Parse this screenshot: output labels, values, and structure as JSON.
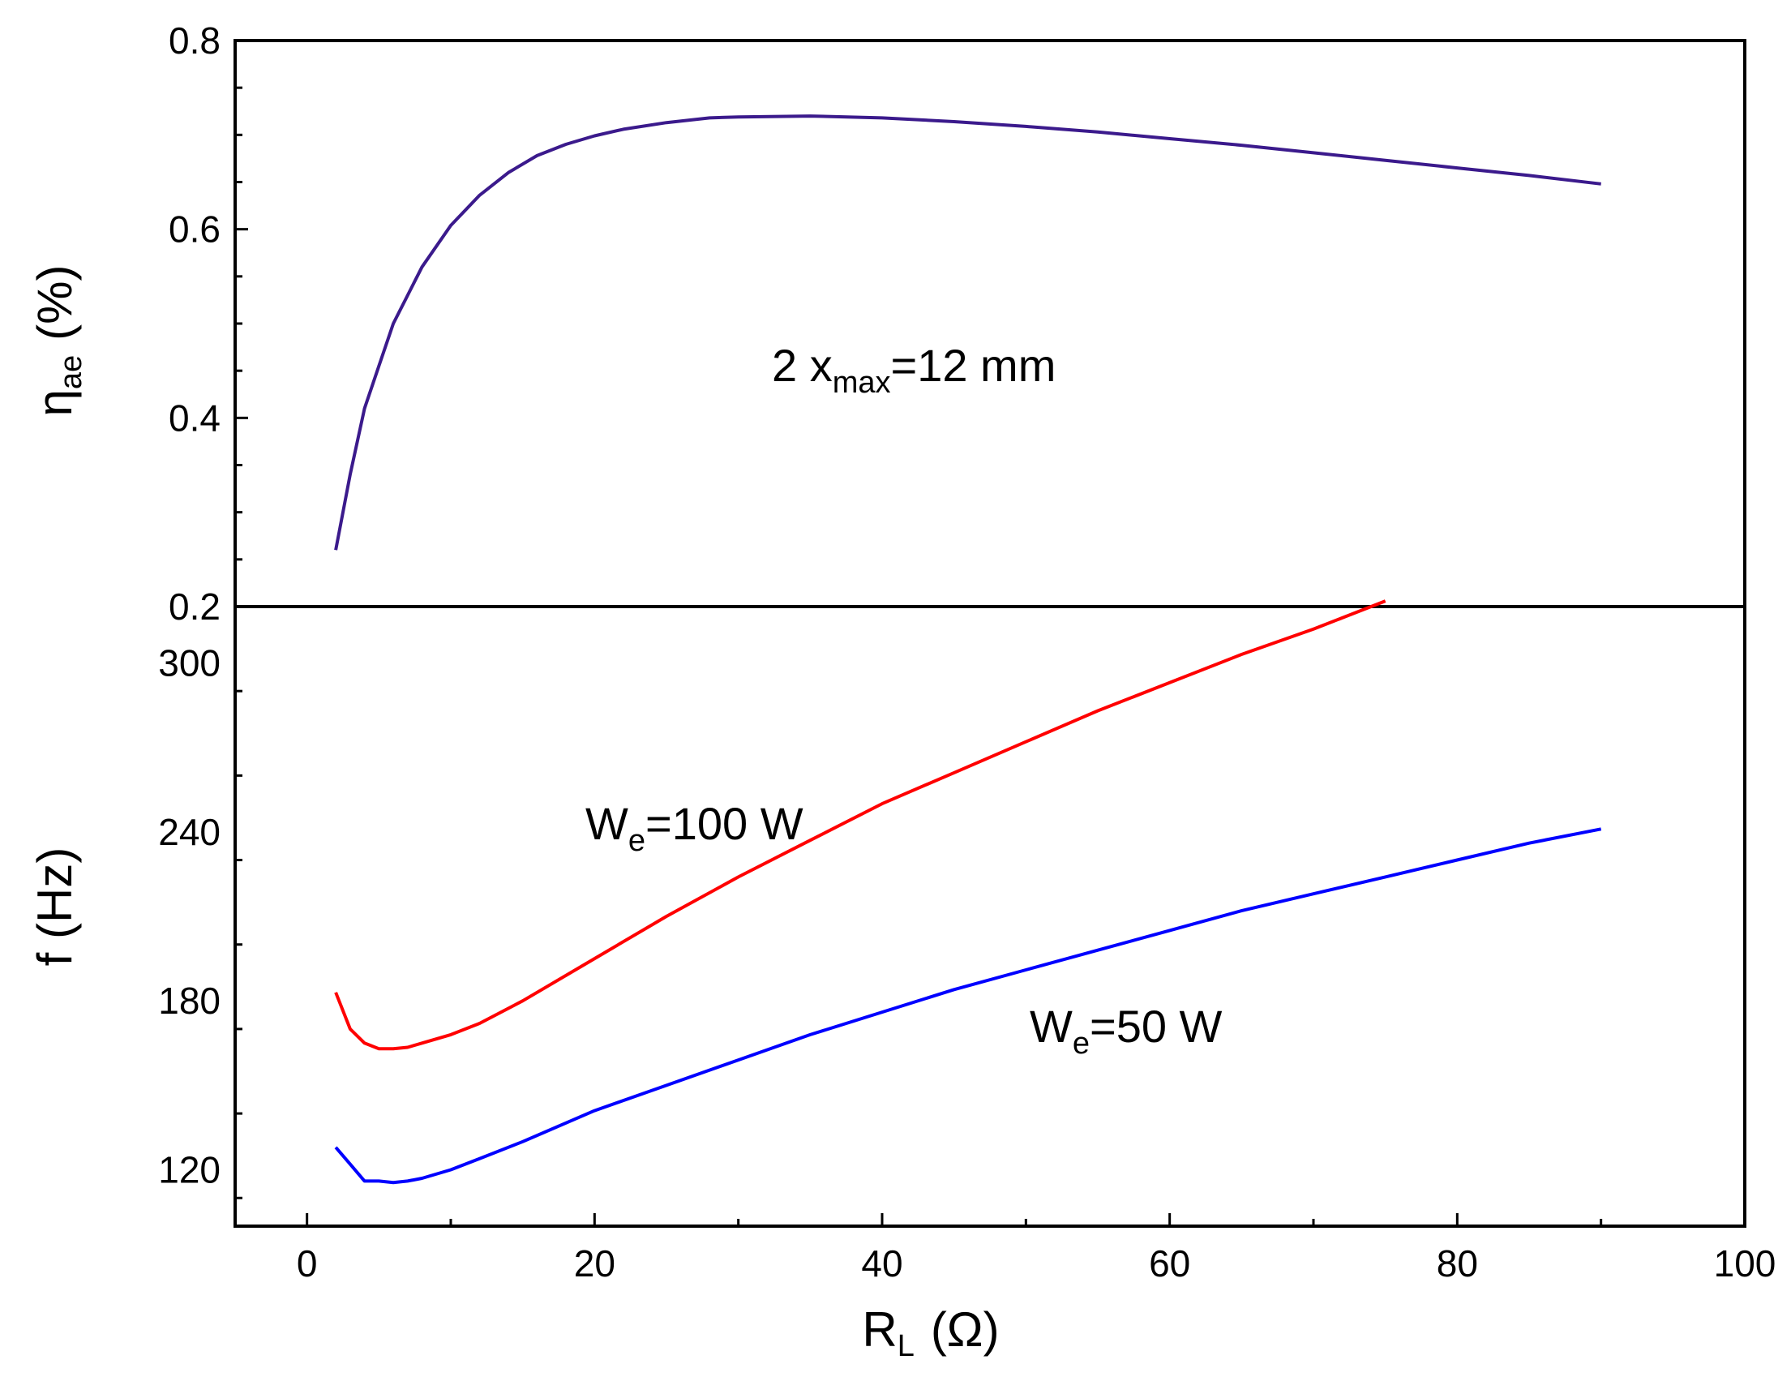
{
  "chart_data": [
    {
      "type": "line",
      "panel": "top",
      "ylabel_main": "η",
      "ylabel_sub": "ae",
      "ylabel_unit": "(%)",
      "ylim": [
        0.2,
        0.8
      ],
      "yticks": [
        "0.2",
        "0.4",
        "0.6",
        "0.8"
      ],
      "annotation": {
        "prefix": "2 x",
        "sub": "max",
        "suffix": "=12 mm"
      },
      "series": [
        {
          "name": "eta_ae",
          "color": "#3b1a8c",
          "x": [
            2,
            3,
            4,
            5,
            6,
            7,
            8,
            10,
            12,
            14,
            16,
            18,
            20,
            22,
            25,
            28,
            30,
            35,
            40,
            45,
            50,
            55,
            60,
            65,
            70,
            75,
            80,
            85,
            90
          ],
          "y": [
            0.26,
            0.34,
            0.41,
            0.455,
            0.5,
            0.53,
            0.56,
            0.604,
            0.636,
            0.66,
            0.678,
            0.69,
            0.699,
            0.706,
            0.713,
            0.718,
            0.719,
            0.72,
            0.718,
            0.714,
            0.709,
            0.703,
            0.696,
            0.689,
            0.681,
            0.673,
            0.665,
            0.657,
            0.648
          ]
        }
      ]
    },
    {
      "type": "line",
      "panel": "bottom",
      "ylabel": "f (Hz)",
      "ylim": [
        100,
        320
      ],
      "yticks": [
        "120",
        "180",
        "240",
        "300"
      ],
      "xlim": [
        -5,
        100
      ],
      "xticks": [
        "0",
        "20",
        "40",
        "60",
        "80",
        "100"
      ],
      "xlabel_main": "R",
      "xlabel_sub": "L",
      "xlabel_unit": "(Ω)",
      "series": [
        {
          "name": "We=100 W",
          "label_main": "W",
          "label_sub": "e",
          "label_suffix": "=100 W",
          "color": "#ff0000",
          "x": [
            2,
            3,
            4,
            5,
            6,
            7,
            8,
            10,
            12,
            15,
            20,
            25,
            30,
            35,
            40,
            45,
            50,
            55,
            60,
            65,
            70,
            75
          ],
          "y": [
            183,
            170,
            165,
            163,
            163,
            163.5,
            165,
            168,
            172,
            180,
            195,
            210,
            224,
            237,
            250,
            261,
            272,
            283,
            293,
            303,
            312,
            322
          ]
        },
        {
          "name": "We=50 W",
          "label_main": "W",
          "label_sub": "e",
          "label_suffix": "=50 W",
          "color": "#0000ff",
          "x": [
            2,
            3,
            4,
            5,
            6,
            7,
            8,
            10,
            12,
            15,
            20,
            25,
            30,
            35,
            40,
            45,
            50,
            55,
            60,
            65,
            70,
            75,
            80,
            85,
            90
          ],
          "y": [
            128,
            122,
            116,
            116,
            115.5,
            116,
            117,
            120,
            124,
            130,
            141,
            150,
            159,
            168,
            176,
            184,
            191,
            198,
            205,
            212,
            218,
            224,
            230,
            236,
            241
          ]
        }
      ]
    }
  ]
}
